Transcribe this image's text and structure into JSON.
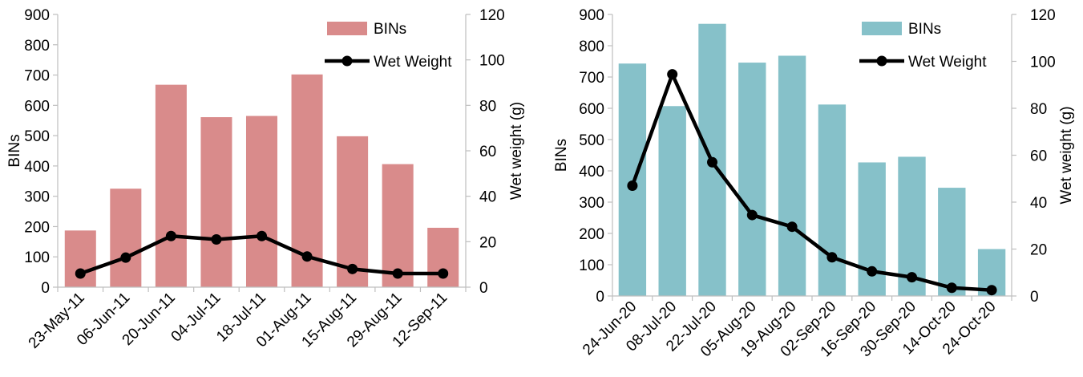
{
  "chart_data": [
    {
      "type": "bar",
      "categories": [
        "23-May-11",
        "06-Jun-11",
        "20-Jun-11",
        "04-Jul-11",
        "18-Jul-11",
        "01-Aug-11",
        "15-Aug-11",
        "29-Aug-11",
        "12-Sep-11"
      ],
      "series": [
        {
          "name": "BINs",
          "type": "bar",
          "axis": "left",
          "color": "#d98b8b",
          "values": [
            187,
            325,
            668,
            561,
            565,
            702,
            498,
            406,
            196
          ]
        },
        {
          "name": "Wet Weight",
          "type": "line",
          "axis": "right",
          "color": "#000000",
          "values": [
            6,
            13,
            22.5,
            21,
            22.5,
            13.5,
            8,
            6,
            6
          ]
        }
      ],
      "ylabel": "BINs",
      "y2label": "Wet weight (g)",
      "ylim": [
        0,
        900
      ],
      "y2lim": [
        0,
        120
      ],
      "yticks": [
        "0",
        "100",
        "200",
        "300",
        "400",
        "500",
        "600",
        "700",
        "800",
        "900"
      ],
      "y2ticks": [
        "0",
        "20",
        "40",
        "60",
        "80",
        "100",
        "120"
      ],
      "legend_position": "top-right",
      "grid": false
    },
    {
      "type": "bar",
      "categories": [
        "24-Jun-20",
        "08-Jul-20",
        "22-Jul-20",
        "05-Aug-20",
        "19-Aug-20",
        "02-Sep-20",
        "16-Sep-20",
        "30-Sep-20",
        "14-Oct-20",
        "24-Oct-20"
      ],
      "series": [
        {
          "name": "BINs",
          "type": "bar",
          "axis": "left",
          "color": "#86c1c9",
          "values": [
            743,
            607,
            870,
            746,
            768,
            612,
            427,
            445,
            346,
            150
          ]
        },
        {
          "name": "Wet Weight",
          "type": "line",
          "axis": "right",
          "color": "#000000",
          "values": [
            47,
            94.5,
            57,
            34.5,
            29.5,
            16.5,
            10.5,
            8,
            3.5,
            2.5
          ]
        }
      ],
      "ylabel": "BINs",
      "y2label": "Wet weight (g)",
      "ylim": [
        0,
        900
      ],
      "y2lim": [
        0,
        120
      ],
      "yticks": [
        "0",
        "100",
        "200",
        "300",
        "400",
        "500",
        "600",
        "700",
        "800",
        "900"
      ],
      "y2ticks": [
        "0",
        "20",
        "40",
        "60",
        "80",
        "100",
        "120"
      ],
      "legend_position": "top-right",
      "grid": false
    }
  ]
}
